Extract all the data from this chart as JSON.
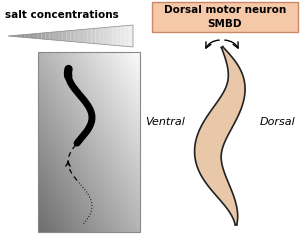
{
  "title_left": "salt concentrations",
  "title_right_line1": "Dorsal motor neuron",
  "title_right_line2": "SMBD",
  "label_ventral": "Ventral",
  "label_dorsal": "Dorsal",
  "box_right_bg": "#f5c8a8",
  "box_right_edge": "#cc8866",
  "worm_fill": "#e8c8a8",
  "worm_outline": "#222222"
}
